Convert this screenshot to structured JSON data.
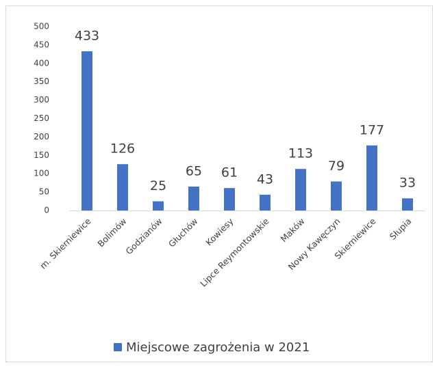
{
  "chart_data": {
    "type": "bar",
    "categories": [
      "m. Skierniewice",
      "Bolimów",
      "Godzianów",
      "Głuchów",
      "Kowiesy",
      "Lipce Reymontowskie",
      "Maków",
      "Nowy Kawęczyn",
      "Skierniewice",
      "Słupia"
    ],
    "series": [
      {
        "name": "Miejscowe zagrożenia w 2021",
        "color": "#4472c4",
        "values": [
          433,
          126,
          25,
          65,
          61,
          43,
          113,
          79,
          177,
          33
        ]
      }
    ],
    "ylim": [
      0,
      500
    ],
    "yticks": [
      0,
      50,
      100,
      150,
      200,
      250,
      300,
      350,
      400,
      450,
      500
    ],
    "grid": false,
    "legend": "bottom",
    "data_labels": true
  }
}
